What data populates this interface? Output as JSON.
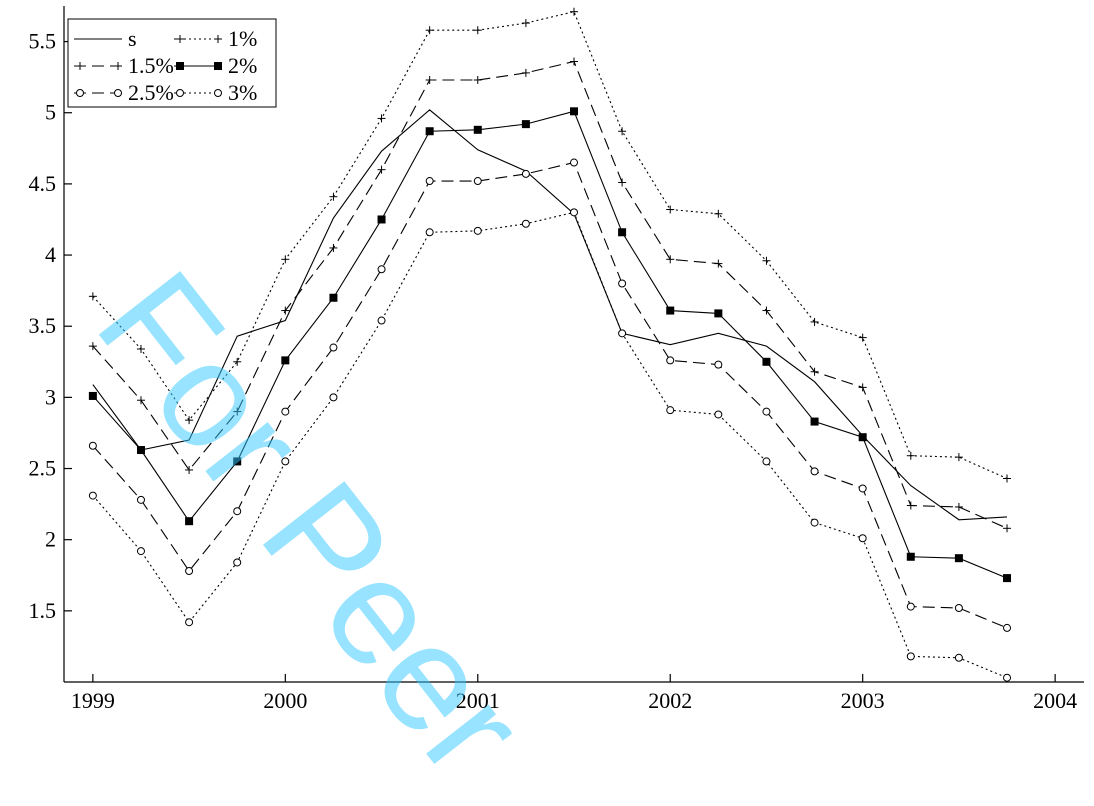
{
  "watermark": "For Peer",
  "chart_data": {
    "type": "line",
    "title": "",
    "xlabel": "",
    "ylabel": "",
    "xlim": [
      1998.85,
      2004.15
    ],
    "ylim": [
      1.0,
      5.75
    ],
    "xticks": [
      1999,
      2000,
      2001,
      2002,
      2003,
      2004
    ],
    "yticks": [
      1.5,
      2,
      2.5,
      3,
      3.5,
      4,
      4.5,
      5,
      5.5
    ],
    "x": [
      1999.0,
      1999.25,
      1999.5,
      1999.75,
      2000.0,
      2000.25,
      2000.5,
      2000.75,
      2001.0,
      2001.25,
      2001.5,
      2001.75,
      2002.0,
      2002.25,
      2002.5,
      2002.75,
      2003.0,
      2003.25,
      2003.5,
      2003.75
    ],
    "legend_position": "top-left",
    "grid": false,
    "series": [
      {
        "name": "s",
        "style": "solid",
        "marker": "none",
        "values": [
          3.09,
          2.63,
          2.7,
          3.43,
          3.54,
          4.26,
          4.73,
          5.02,
          4.74,
          4.59,
          4.29,
          3.45,
          3.37,
          3.45,
          3.36,
          3.11,
          2.73,
          2.38,
          2.14,
          2.16
        ]
      },
      {
        "name": "1%",
        "style": "dotted",
        "marker": "plus",
        "values": [
          3.71,
          3.34,
          2.84,
          3.25,
          3.97,
          4.41,
          4.96,
          5.58,
          5.58,
          5.63,
          5.71,
          4.87,
          4.32,
          4.29,
          3.96,
          3.53,
          3.42,
          2.59,
          2.58,
          2.43
        ]
      },
      {
        "name": "1.5%",
        "style": "dashed",
        "marker": "plus",
        "values": [
          3.36,
          2.98,
          2.49,
          2.9,
          3.61,
          4.05,
          4.6,
          5.23,
          5.23,
          5.28,
          5.36,
          4.51,
          3.97,
          3.94,
          3.61,
          3.18,
          3.07,
          2.24,
          2.23,
          2.08
        ]
      },
      {
        "name": "2%",
        "style": "solid",
        "marker": "square",
        "values": [
          3.01,
          2.63,
          2.13,
          2.55,
          3.26,
          3.7,
          4.25,
          4.87,
          4.88,
          4.92,
          5.01,
          4.16,
          3.61,
          3.59,
          3.25,
          2.83,
          2.72,
          1.88,
          1.87,
          1.73
        ]
      },
      {
        "name": "2.5%",
        "style": "dashed",
        "marker": "circle",
        "values": [
          2.66,
          2.28,
          1.78,
          2.2,
          2.9,
          3.35,
          3.9,
          4.52,
          4.52,
          4.57,
          4.65,
          3.8,
          3.26,
          3.23,
          2.9,
          2.48,
          2.36,
          1.53,
          1.52,
          1.38
        ]
      },
      {
        "name": "3%",
        "style": "dotted",
        "marker": "circle",
        "values": [
          2.31,
          1.92,
          1.42,
          1.84,
          2.55,
          3.0,
          3.54,
          4.16,
          4.17,
          4.22,
          4.3,
          3.45,
          2.91,
          2.88,
          2.55,
          2.12,
          2.01,
          1.18,
          1.17,
          1.03
        ]
      }
    ]
  }
}
